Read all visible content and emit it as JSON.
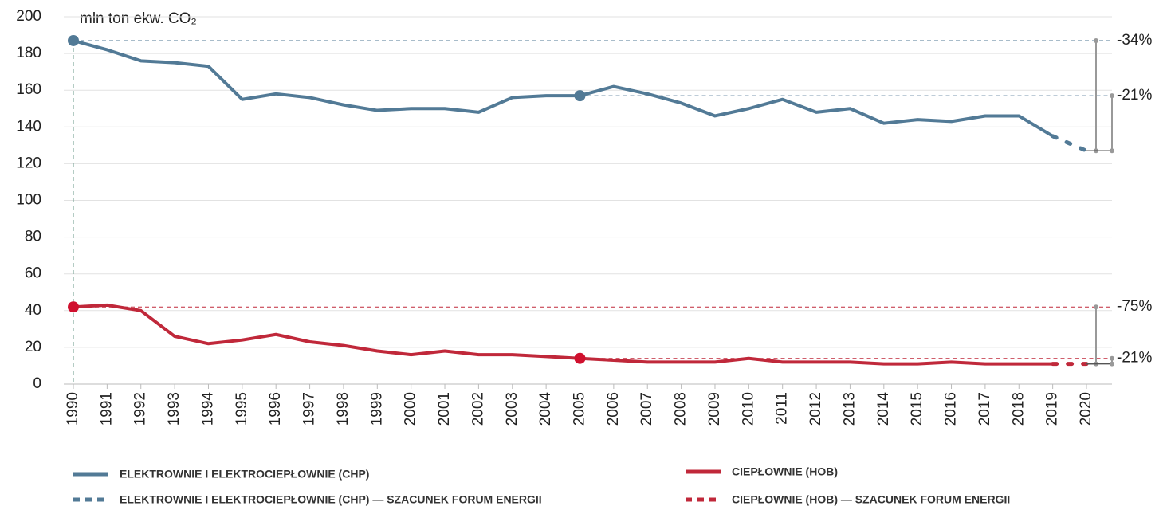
{
  "chart_data": {
    "type": "line",
    "y_label": "mln ton ekw. CO₂",
    "x": [
      1990,
      1991,
      1992,
      1993,
      1994,
      1995,
      1996,
      1997,
      1998,
      1999,
      2000,
      2001,
      2002,
      2003,
      2004,
      2005,
      2006,
      2007,
      2008,
      2009,
      2010,
      2011,
      2012,
      2013,
      2014,
      2015,
      2016,
      2017,
      2018,
      2019,
      2020
    ],
    "series": [
      {
        "name": "ELEKTROWNIE I ELEKTROCIEPŁOWNIE (CHP)",
        "color": "#527a96",
        "style": "solid",
        "values": [
          187,
          182,
          176,
          175,
          173,
          155,
          158,
          156,
          152,
          149,
          150,
          150,
          148,
          156,
          157,
          157,
          162,
          158,
          153,
          146,
          150,
          155,
          148,
          150,
          142,
          144,
          143,
          146,
          146,
          135,
          null
        ]
      },
      {
        "name": "CIEPŁOWNIE (HOB)",
        "color": "#c0283a",
        "style": "solid",
        "values": [
          42,
          43,
          40,
          26,
          22,
          24,
          27,
          23,
          21,
          18,
          16,
          18,
          16,
          16,
          15,
          14,
          13,
          12,
          12,
          12,
          14,
          12,
          12,
          12,
          11,
          11,
          12,
          11,
          11,
          11,
          null
        ]
      },
      {
        "name": "ELEKTROWNIE I ELEKTROCIEPŁOWNIE (CHP) — SZACUNEK FORUM ENERGII",
        "color": "#527a96",
        "style": "dotted",
        "values": [
          null,
          null,
          null,
          null,
          null,
          null,
          null,
          null,
          null,
          null,
          null,
          null,
          null,
          null,
          null,
          null,
          null,
          null,
          null,
          null,
          null,
          null,
          null,
          null,
          null,
          null,
          null,
          null,
          null,
          135,
          127
        ]
      },
      {
        "name": "CIEPŁOWNIE (HOB) — SZACUNEK FORUM ENERGII",
        "color": "#c0283a",
        "style": "dotted",
        "values": [
          null,
          null,
          null,
          null,
          null,
          null,
          null,
          null,
          null,
          null,
          null,
          null,
          null,
          null,
          null,
          null,
          null,
          null,
          null,
          null,
          null,
          null,
          null,
          null,
          null,
          null,
          null,
          null,
          null,
          11,
          11
        ]
      }
    ],
    "annotations": [
      "-34%",
      "-21%",
      "-75%",
      "-21%"
    ],
    "ylim": [
      0,
      200
    ],
    "yticks": [
      0,
      20,
      40,
      60,
      80,
      100,
      120,
      140,
      160,
      180,
      200
    ],
    "grid": true,
    "legend": "bottom"
  }
}
